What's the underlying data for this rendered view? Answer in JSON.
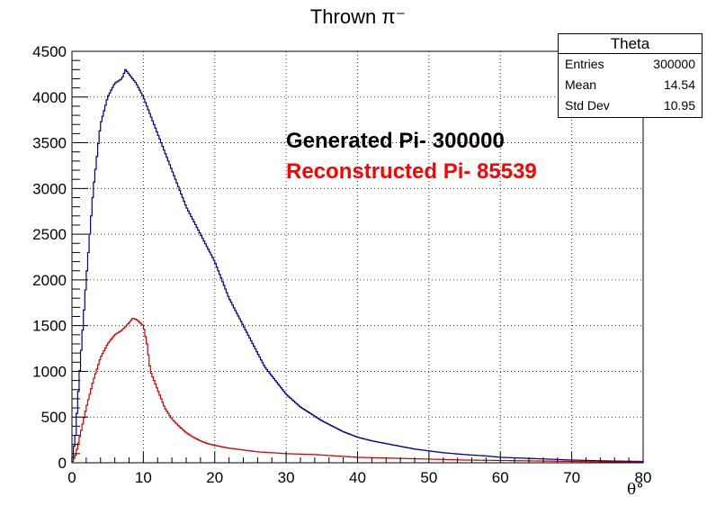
{
  "title": "Thrown π⁻",
  "stats_box": {
    "title": "Theta",
    "rows": [
      {
        "label": "Entries",
        "value": "300000"
      },
      {
        "label": "Mean",
        "value": "14.54"
      },
      {
        "label": "Std Dev",
        "value": "10.95"
      }
    ]
  },
  "annotations": {
    "generated": "Generated Pi- 300000",
    "reconstructed": "Reconstructed Pi- 85539"
  },
  "colors": {
    "generated": "#000080",
    "reconstructed": "#cc0000",
    "reconstructed_text": "#ff0000"
  },
  "chart_data": {
    "type": "histogram",
    "title": "Thrown π⁻",
    "xlabel": "θ°",
    "ylabel": "",
    "xlim": [
      0,
      80
    ],
    "ylim": [
      0,
      4500
    ],
    "xticks": [
      0,
      10,
      20,
      30,
      40,
      50,
      60,
      70,
      80
    ],
    "yticks": [
      0,
      500,
      1000,
      1500,
      2000,
      2500,
      3000,
      3500,
      4000,
      4500
    ],
    "grid": true,
    "series": [
      {
        "name": "Generated Pi- 300000",
        "points": [
          [
            0,
            0
          ],
          [
            0.5,
            300
          ],
          [
            1,
            900
          ],
          [
            2,
            2000
          ],
          [
            3,
            3000
          ],
          [
            4,
            3700
          ],
          [
            5,
            4000
          ],
          [
            6,
            4150
          ],
          [
            7,
            4200
          ],
          [
            7.5,
            4300
          ],
          [
            8,
            4250
          ],
          [
            9,
            4150
          ],
          [
            10,
            4000
          ],
          [
            11,
            3800
          ],
          [
            12,
            3600
          ],
          [
            13,
            3400
          ],
          [
            14,
            3200
          ],
          [
            15,
            3000
          ],
          [
            16,
            2800
          ],
          [
            17,
            2650
          ],
          [
            18,
            2500
          ],
          [
            19,
            2350
          ],
          [
            20,
            2200
          ],
          [
            21,
            2000
          ],
          [
            22,
            1800
          ],
          [
            23,
            1650
          ],
          [
            24,
            1500
          ],
          [
            25,
            1350
          ],
          [
            26,
            1200
          ],
          [
            27,
            1050
          ],
          [
            28,
            950
          ],
          [
            29,
            850
          ],
          [
            30,
            750
          ],
          [
            31,
            680
          ],
          [
            32,
            610
          ],
          [
            33,
            560
          ],
          [
            34,
            510
          ],
          [
            35,
            460
          ],
          [
            36,
            420
          ],
          [
            37,
            380
          ],
          [
            38,
            340
          ],
          [
            39,
            310
          ],
          [
            40,
            280
          ],
          [
            42,
            240
          ],
          [
            44,
            210
          ],
          [
            46,
            180
          ],
          [
            48,
            150
          ],
          [
            50,
            130
          ],
          [
            52,
            110
          ],
          [
            55,
            90
          ],
          [
            58,
            75
          ],
          [
            60,
            60
          ],
          [
            65,
            45
          ],
          [
            70,
            30
          ],
          [
            75,
            20
          ],
          [
            80,
            15
          ]
        ]
      },
      {
        "name": "Reconstructed Pi- 85539",
        "points": [
          [
            0,
            0
          ],
          [
            0.5,
            80
          ],
          [
            1,
            250
          ],
          [
            2,
            600
          ],
          [
            3,
            900
          ],
          [
            4,
            1150
          ],
          [
            5,
            1300
          ],
          [
            6,
            1400
          ],
          [
            7,
            1450
          ],
          [
            8,
            1530
          ],
          [
            8.5,
            1580
          ],
          [
            9,
            1570
          ],
          [
            10,
            1500
          ],
          [
            10.5,
            1300
          ],
          [
            11,
            1000
          ],
          [
            12,
            800
          ],
          [
            13,
            600
          ],
          [
            14,
            480
          ],
          [
            15,
            400
          ],
          [
            16,
            330
          ],
          [
            17,
            280
          ],
          [
            18,
            240
          ],
          [
            19,
            210
          ],
          [
            20,
            190
          ],
          [
            22,
            160
          ],
          [
            24,
            140
          ],
          [
            26,
            120
          ],
          [
            28,
            110
          ],
          [
            30,
            100
          ],
          [
            32,
            95
          ],
          [
            34,
            90
          ],
          [
            36,
            80
          ],
          [
            38,
            70
          ],
          [
            40,
            60
          ],
          [
            45,
            50
          ],
          [
            50,
            40
          ],
          [
            55,
            30
          ],
          [
            60,
            25
          ],
          [
            65,
            20
          ],
          [
            70,
            15
          ],
          [
            75,
            10
          ],
          [
            80,
            8
          ]
        ]
      }
    ]
  }
}
